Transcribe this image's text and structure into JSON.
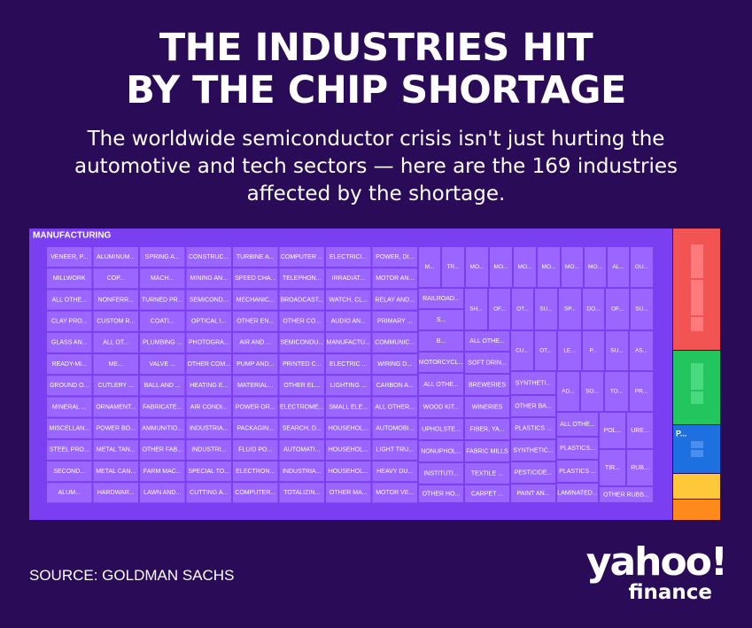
{
  "title_lines": [
    "THE INDUSTRIES HIT",
    "BY THE CHIP SHORTAGE"
  ],
  "subtitle": "The worldwide semiconductor crisis isn't just hurting the automotive and tech sectors — here are the 169 industries affected by the shortage.",
  "source": "SOURCE: GOLDMAN SACHS",
  "logo": {
    "line1": "yahoo!",
    "line2": "finance"
  },
  "colors": {
    "background": "#2a0b57",
    "manufacturing": "#7b3ff2",
    "manufacturing_cell": "#9a66ff",
    "red": "#f25454",
    "green": "#22c55e",
    "blue": "#1e6fe0",
    "yellow": "#ffc83a",
    "orange": "#ff8a1c"
  },
  "chart_data": {
    "type": "treemap",
    "groups": [
      {
        "name": "MANUFACTURING",
        "color": "manufacturing",
        "cells": [
          "VENEER, P...",
          "ALUMINUM...",
          "SPRING A...",
          "CONSTRUC...",
          "TURBINE A...",
          "COMPUTER ...",
          "ELECTRICI...",
          "POWER, DI...",
          "MILLWORK",
          "COP...",
          "MACH...",
          "MINING AN...",
          "SPEED CHA...",
          "TELEPHON...",
          "IRRADIAT...",
          "MOTOR AN...",
          "ALL OTHE...",
          "NONFERR...",
          "TURNED PR...",
          "SEMICOND...",
          "MECHANIC...",
          "BROADCAST...",
          "WATCH, CL...",
          "RELAY AND...",
          "CLAY PRO...",
          "CUSTOM R...",
          "COATI...",
          "OPTICAL I...",
          "OTHER EN...",
          "OTHER CO...",
          "AUDIO AN...",
          "PRIMARY ...",
          "GLASS AN...",
          "ALL OT...",
          "PLUMBING ...",
          "PHOTOGRA...",
          "AIR AND ...",
          "SEMICONDU...",
          "MANUFACTU...",
          "COMMUNIC...",
          "READY-MI...",
          "ME...",
          "VALVE ...",
          "OTHER COM...",
          "PUMP AND...",
          "PRINTED C...",
          "ELECTRIC ...",
          "WIRING D...",
          "GROUND O...",
          "CUTLERY ...",
          "BALL AND ...",
          "HEATING E...",
          "MATERIAL...",
          "OTHER EL...",
          "LIGHTING ...",
          "CARBON A...",
          "MINERAL ...",
          "ORNAMENT...",
          "FABRICATE...",
          "AIR CONDI...",
          "POWER-DR...",
          "ELECTROME...",
          "SMALL ELE...",
          "ALL OTHER...",
          "MISCELLAN...",
          "POWER BO...",
          "AMMUNITIO...",
          "INDUSTRIA...",
          "PACKAGIN...",
          "SEARCH, D...",
          "HOUSEHOL...",
          "AUTOMOBI...",
          "STEEL PRO...",
          "METAL TAN...",
          "OTHER FAB...",
          "INDUSTRI...",
          "FLUID PO...",
          "AUTOMATI...",
          "HOUSEHOL...",
          "LIGHT TRU...",
          "SECOND...",
          "METAL CAN...",
          "FARM MAC...",
          "SPECIAL TO...",
          "ELECTRON...",
          "INDUSTRIA...",
          "HOUSEHOL...",
          "HEAVY DU...",
          "ALUM...",
          "HARDWAR...",
          "LAWN AND...",
          "CUTTING A...",
          "COMPUTER...",
          "TOTALIZIN...",
          "OTHER MA...",
          "MOTOR VE...",
          "M...",
          "TR...",
          "MO...",
          "MO...",
          "MO...",
          "MO...",
          "MO...",
          "MO...",
          "AL...",
          "GU...",
          "RAILROAD...",
          "S...",
          "B...",
          "MOTORCYCL...",
          "ALL OTHE...",
          "WOOD KIT...",
          "UPHOLSTE...",
          "NONUPHOL...",
          "INSTITUTI...",
          "OTHER HO...",
          "SH...",
          "OF...",
          "OT...",
          "SU...",
          "SP...",
          "DO...",
          "OF...",
          "SU...",
          "ALL OTHE...",
          "SOFT DRIN...",
          "BREWERIES",
          "WINERIES",
          "FIBER, YA...",
          "FABRIC MILLS",
          "TEXTILE ...",
          "CARPET ...",
          "CU...",
          "OT...",
          "LE...",
          "P...",
          "SU...",
          "AS...",
          "SYNTHETI...",
          "OTHER BA...",
          "PLASTICS ...",
          "SYNTHETIC...",
          "PESTICIDE...",
          "PAINT AN...",
          "AD...",
          "SO...",
          "TO...",
          "PR...",
          "ALL OTHE...",
          "PLASTICS...",
          "PLASTICS ...",
          "LAMINATED...",
          "POL...",
          "URE...",
          "TIR...",
          "RUB...",
          "OTHER RUBB..."
        ]
      },
      {
        "name": "",
        "color": "red"
      },
      {
        "name": "",
        "color": "green"
      },
      {
        "name": "P...",
        "color": "blue"
      },
      {
        "name": "",
        "color": "yellow"
      },
      {
        "name": "",
        "color": "orange"
      }
    ]
  }
}
